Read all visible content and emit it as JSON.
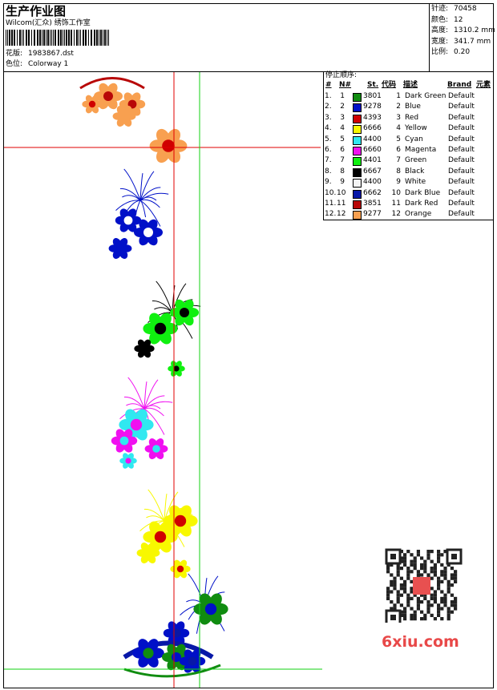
{
  "header": {
    "title": "生产作业图",
    "studio": "Wilcom(汇众) 绣饰工作室",
    "design_label": "花版:",
    "design_file": "1983867.dst",
    "colorway_label": "色位:",
    "colorway": "Colorway 1"
  },
  "info": [
    {
      "label": "针迹:",
      "value": "70458"
    },
    {
      "label": "颜色:",
      "value": "12"
    },
    {
      "label": "高度:",
      "value": "1310.2 mm"
    },
    {
      "label": "宽度:",
      "value": "341.7 mm"
    },
    {
      "label": "比例:",
      "value": "0.20"
    }
  ],
  "table": {
    "title": "停止顺序:",
    "headers": [
      "#",
      "N#",
      "St.",
      "代码",
      "描述",
      "Brand",
      "元素"
    ],
    "rows": [
      {
        "index": "1.",
        "needle": "1",
        "color": "#108c10",
        "stitches": "3801",
        "code": "1",
        "description": "Dark Green",
        "brand": "Default"
      },
      {
        "index": "2.",
        "needle": "2",
        "color": "#0010c8",
        "stitches": "9278",
        "code": "2",
        "description": "Blue",
        "brand": "Default"
      },
      {
        "index": "3.",
        "needle": "3",
        "color": "#d00000",
        "stitches": "4393",
        "code": "3",
        "description": "Red",
        "brand": "Default"
      },
      {
        "index": "4.",
        "needle": "4",
        "color": "#f8f800",
        "stitches": "6666",
        "code": "4",
        "description": "Yellow",
        "brand": "Default"
      },
      {
        "index": "5.",
        "needle": "5",
        "color": "#30e8f0",
        "stitches": "4400",
        "code": "5",
        "description": "Cyan",
        "brand": "Default"
      },
      {
        "index": "6.",
        "needle": "6",
        "color": "#f010f0",
        "stitches": "6660",
        "code": "6",
        "description": "Magenta",
        "brand": "Default"
      },
      {
        "index": "7.",
        "needle": "7",
        "color": "#10f010",
        "stitches": "4401",
        "code": "7",
        "description": "Green",
        "brand": "Default"
      },
      {
        "index": "8.",
        "needle": "8",
        "color": "#000000",
        "stitches": "6667",
        "code": "8",
        "description": "Black",
        "brand": "Default"
      },
      {
        "index": "9.",
        "needle": "9",
        "color": "#f4f4f4",
        "stitches": "4400",
        "code": "9",
        "description": "White",
        "brand": "Default"
      },
      {
        "index": "10.",
        "needle": "10",
        "color": "#0818a8",
        "stitches": "6662",
        "code": "10",
        "description": "Dark Blue",
        "brand": "Default"
      },
      {
        "index": "11.",
        "needle": "11",
        "color": "#b80808",
        "stitches": "3851",
        "code": "11",
        "description": "Dark Red",
        "brand": "Default"
      },
      {
        "index": "12.",
        "needle": "12",
        "color": "#f8a050",
        "stitches": "9277",
        "code": "12",
        "description": "Orange",
        "brand": "Default"
      }
    ]
  },
  "watermark": "6xiu.com"
}
